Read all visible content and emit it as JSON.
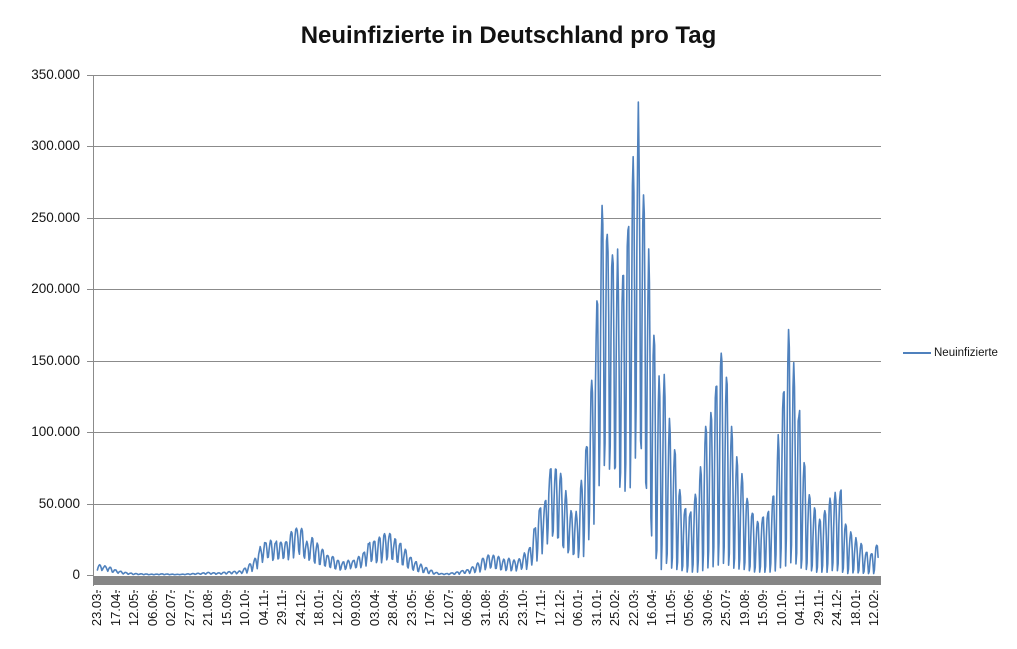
{
  "chart_data": {
    "type": "line",
    "title": "Neuinfizierte in Deutschland pro Tag",
    "series_name": "Neuinfizierte",
    "line_color": "#4F81BD",
    "grid_color": "#8b8b8b",
    "zero_axis_band_color": "#868686",
    "legend_position": "right-middle",
    "grid": "horizontal",
    "ylim": [
      0,
      350000
    ],
    "y_tick_step": 50000,
    "y_tick_labels": [
      "0",
      "50.000",
      "100.000",
      "150.000",
      "200.000",
      "250.000",
      "300.000",
      "350.000"
    ],
    "x_tick_labels": [
      "23.03.",
      "17.04.",
      "12.05.",
      "06.06.",
      "02.07.",
      "27.07.",
      "21.08.",
      "15.09.",
      "10.10.",
      "04.11.",
      "29.11.",
      "24.12.",
      "18.01.",
      "12.02.",
      "09.03.",
      "03.04.",
      "28.04.",
      "23.05.",
      "17.06.",
      "12.07.",
      "06.08.",
      "31.08.",
      "25.09.",
      "23.10.",
      "17.11.",
      "12.12.",
      "06.01.",
      "31.01.",
      "25.02.",
      "22.03.",
      "16.04.",
      "11.05.",
      "05.06.",
      "30.06.",
      "25.07.",
      "19.08.",
      "15.09.",
      "10.10.",
      "04.11.",
      "29.11.",
      "24.12.",
      "18.01.",
      "12.02."
    ],
    "x_tick_interval_days": 25,
    "days_total": 1056,
    "series_encoding": "daily values oscillate weekly between weekly_min_max[w]=[low,high]; day-of-week weights in weekly_day_shape",
    "weekly_day_shape": [
      0.1,
      0.55,
      0.88,
      1.0,
      0.94,
      0.55,
      0.0
    ],
    "weekly_min_max": [
      [
        3200,
        6900
      ],
      [
        3800,
        6300
      ],
      [
        2200,
        5300
      ],
      [
        1800,
        3600
      ],
      [
        1100,
        2600
      ],
      [
        700,
        1800
      ],
      [
        400,
        1300
      ],
      [
        300,
        1000
      ],
      [
        300,
        800
      ],
      [
        200,
        700
      ],
      [
        200,
        550
      ],
      [
        200,
        600
      ],
      [
        250,
        800
      ],
      [
        250,
        700
      ],
      [
        200,
        550
      ],
      [
        200,
        450
      ],
      [
        250,
        550
      ],
      [
        300,
        800
      ],
      [
        400,
        1000
      ],
      [
        500,
        1200
      ],
      [
        600,
        1450
      ],
      [
        700,
        1800
      ],
      [
        600,
        1600
      ],
      [
        600,
        1500
      ],
      [
        700,
        1900
      ],
      [
        900,
        2300
      ],
      [
        900,
        2500
      ],
      [
        1100,
        2700
      ],
      [
        1400,
        4700
      ],
      [
        2500,
        7800
      ],
      [
        4300,
        11300
      ],
      [
        8700,
        19100
      ],
      [
        12100,
        23400
      ],
      [
        10800,
        23500
      ],
      [
        10900,
        23600
      ],
      [
        11200,
        22800
      ],
      [
        11200,
        23700
      ],
      [
        12300,
        29900
      ],
      [
        16600,
        33800
      ],
      [
        13000,
        32200
      ],
      [
        10300,
        22900
      ],
      [
        9800,
        25200
      ],
      [
        7100,
        22400
      ],
      [
        6400,
        17900
      ],
      [
        5600,
        14000
      ],
      [
        4500,
        12900
      ],
      [
        3400,
        10200
      ],
      [
        3900,
        9100
      ],
      [
        4400,
        9900
      ],
      [
        5000,
        10600
      ],
      [
        5000,
        12700
      ],
      [
        6600,
        15800
      ],
      [
        9900,
        22700
      ],
      [
        8500,
        24300
      ],
      [
        8500,
        25500
      ],
      [
        10800,
        29400
      ],
      [
        11400,
        29500
      ],
      [
        9200,
        24700
      ],
      [
        7500,
        21900
      ],
      [
        5900,
        17400
      ],
      [
        4200,
        12300
      ],
      [
        2600,
        9200
      ],
      [
        1900,
        7400
      ],
      [
        1500,
        5000
      ],
      [
        800,
        3200
      ],
      [
        500,
        1800
      ],
      [
        400,
        1000
      ],
      [
        300,
        1000
      ],
      [
        500,
        1500
      ],
      [
        500,
        2200
      ],
      [
        1200,
        3100
      ],
      [
        1100,
        3800
      ],
      [
        1700,
        5600
      ],
      [
        2100,
        8400
      ],
      [
        3700,
        12000
      ],
      [
        4700,
        13700
      ],
      [
        4700,
        13600
      ],
      [
        3800,
        12900
      ],
      [
        3000,
        10700
      ],
      [
        3100,
        11600
      ],
      [
        2800,
        10400
      ],
      [
        4000,
        11500
      ],
      [
        4100,
        15100
      ],
      [
        6800,
        19600
      ],
      [
        9700,
        33900
      ],
      [
        15500,
        48600
      ],
      [
        22300,
        52800
      ],
      [
        27800,
        76400
      ],
      [
        27000,
        74300
      ],
      [
        21700,
        70600
      ],
      [
        16100,
        56700
      ],
      [
        13900,
        45700
      ],
      [
        12500,
        42800
      ],
      [
        12500,
        64300
      ],
      [
        25200,
        92200
      ],
      [
        34100,
        140200
      ],
      [
        63400,
        190100
      ],
      [
        78000,
        249000
      ],
      [
        76500,
        248000
      ],
      [
        73900,
        235600
      ],
      [
        62300,
        218000
      ],
      [
        56200,
        220000
      ],
      [
        62800,
        250300
      ],
      [
        78300,
        294900
      ],
      [
        92300,
        318400
      ],
      [
        65000,
        276000
      ],
      [
        40000,
        225000
      ],
      [
        12000,
        165000
      ],
      [
        4000,
        136000
      ],
      [
        8000,
        135000
      ],
      [
        5000,
        107000
      ],
      [
        4000,
        88000
      ],
      [
        3000,
        60000
      ],
      [
        2000,
        48000
      ],
      [
        2000,
        45000
      ],
      [
        2000,
        55000
      ],
      [
        3000,
        76000
      ],
      [
        5000,
        104000
      ],
      [
        6000,
        115000
      ],
      [
        7000,
        135000
      ],
      [
        8000,
        160000
      ],
      [
        7000,
        136000
      ],
      [
        5000,
        101000
      ],
      [
        4000,
        81000
      ],
      [
        4000,
        70000
      ],
      [
        3000,
        56000
      ],
      [
        2000,
        45000
      ],
      [
        2000,
        38000
      ],
      [
        2000,
        42000
      ],
      [
        2000,
        45000
      ],
      [
        3000,
        56000
      ],
      [
        5000,
        96000
      ],
      [
        6000,
        132000
      ],
      [
        9000,
        174000
      ],
      [
        8000,
        145000
      ],
      [
        5000,
        117000
      ],
      [
        4000,
        78000
      ],
      [
        3000,
        58000
      ],
      [
        2000,
        46000
      ],
      [
        2000,
        39000
      ],
      [
        2000,
        47000
      ],
      [
        3000,
        53000
      ],
      [
        3000,
        58000
      ],
      [
        2000,
        61000
      ],
      [
        1000,
        36000
      ],
      [
        1500,
        30000
      ],
      [
        1500,
        25000
      ],
      [
        1200,
        21000
      ],
      [
        1000,
        16000
      ],
      [
        1000,
        15000
      ],
      [
        1500,
        21000
      ]
    ]
  }
}
